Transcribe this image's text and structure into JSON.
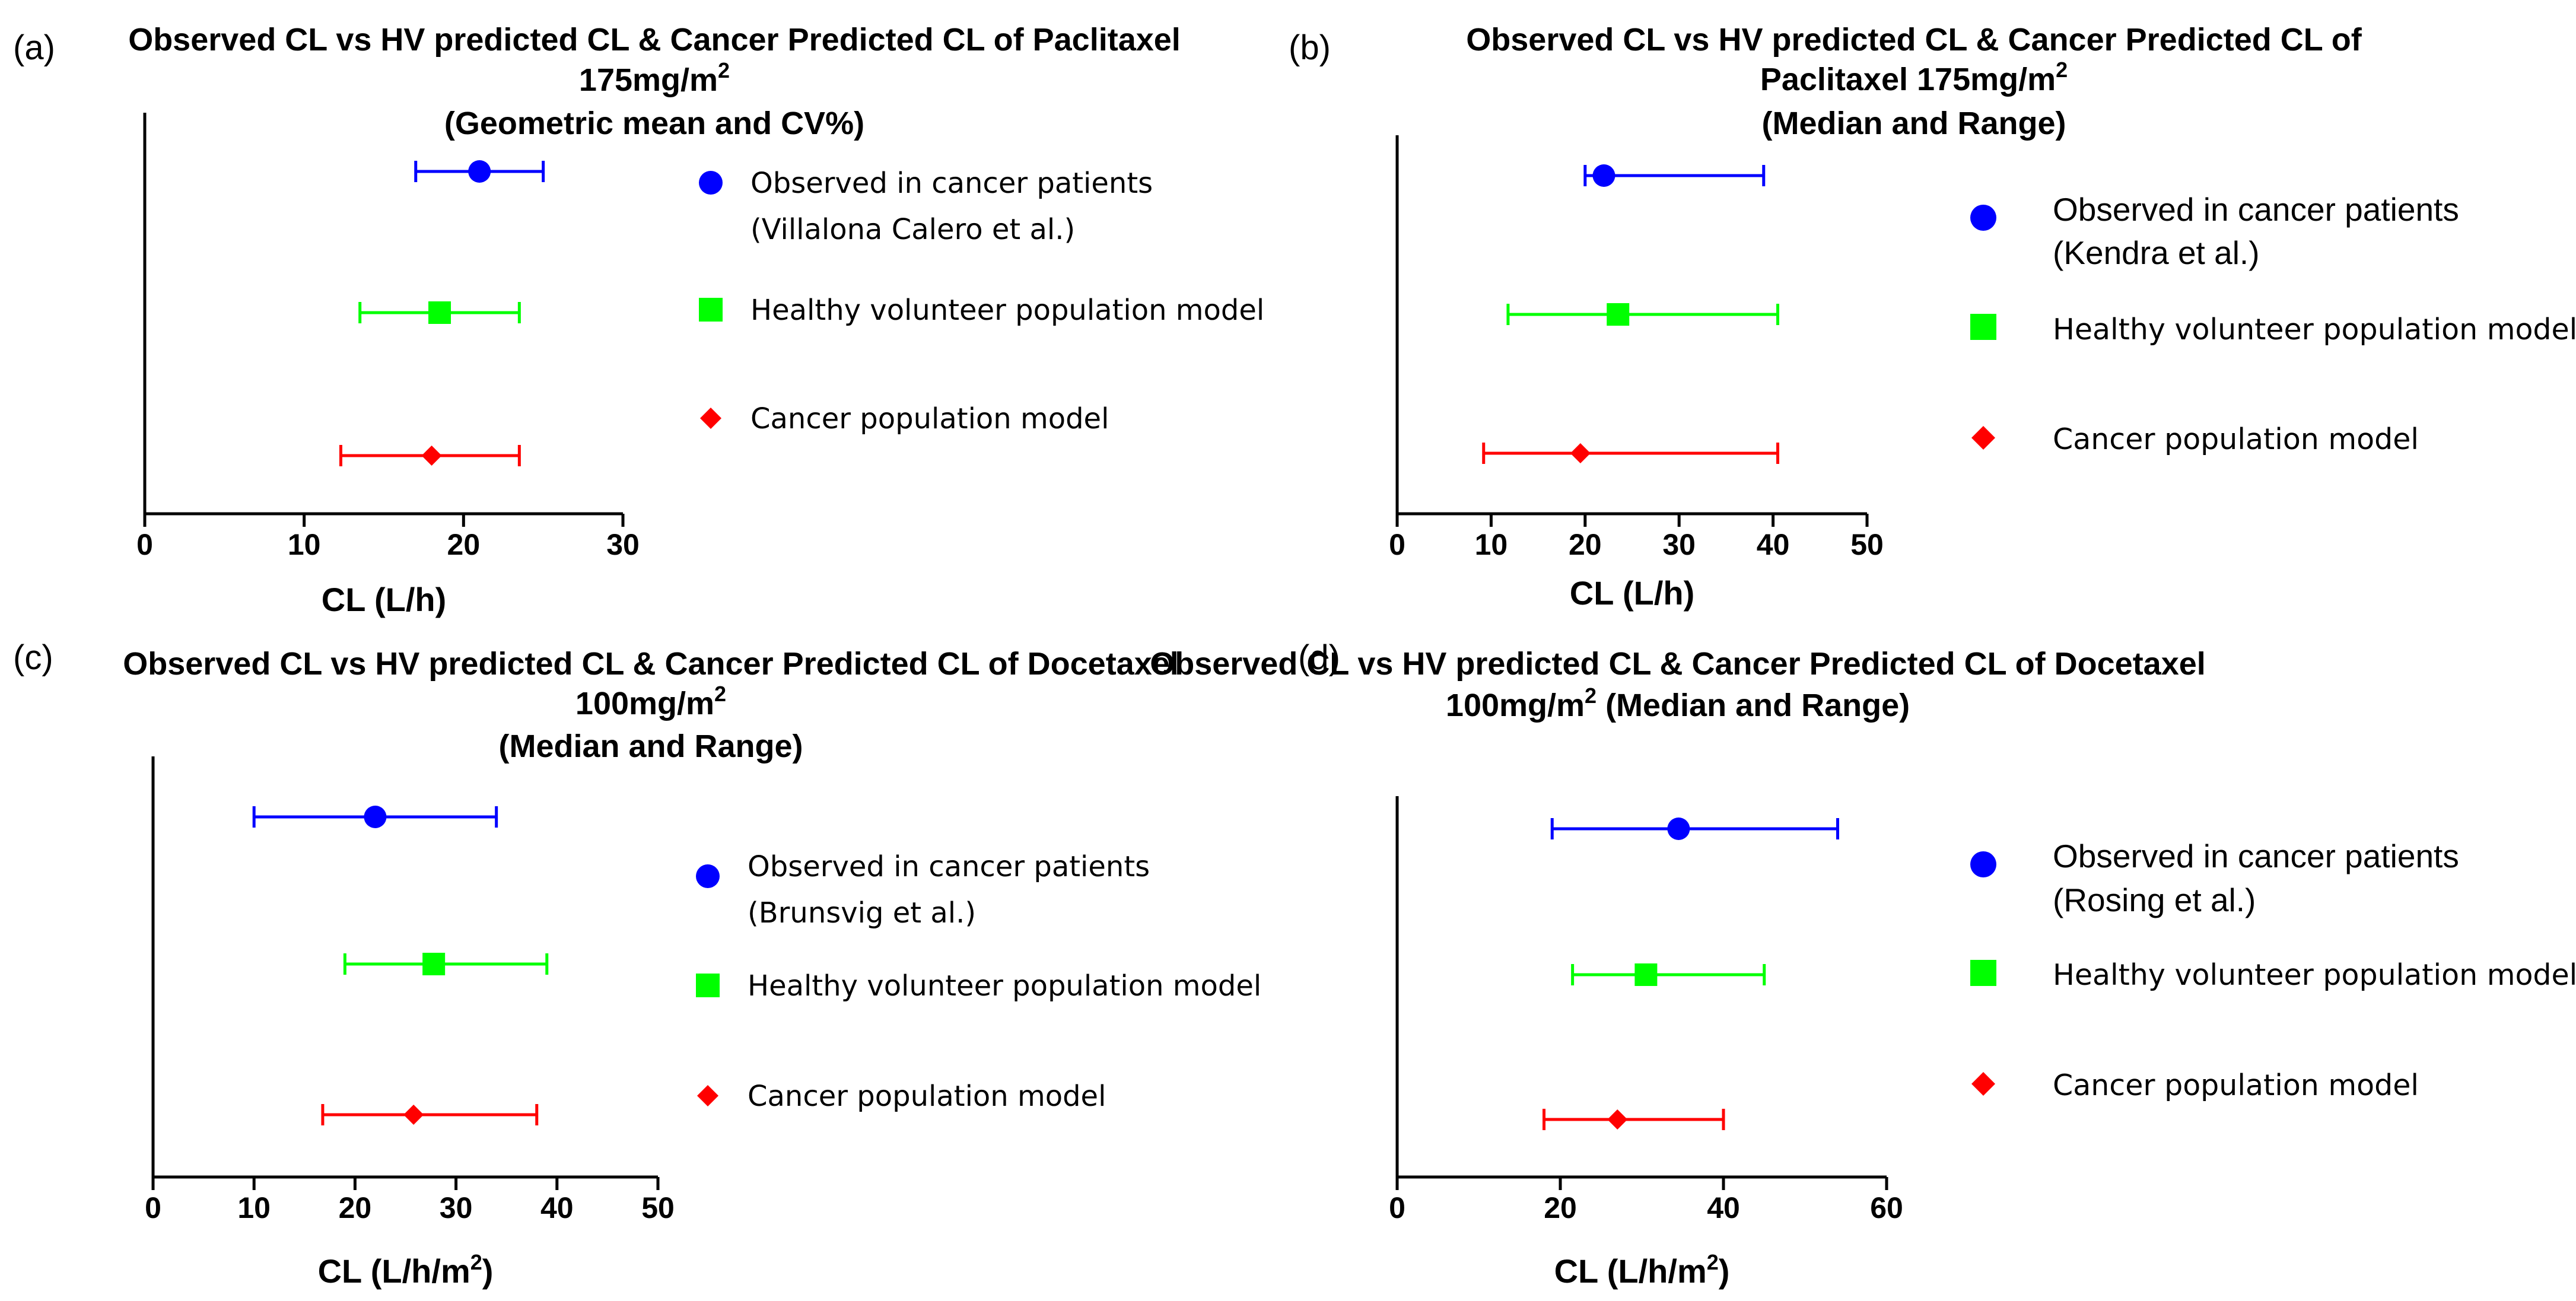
{
  "colors": {
    "observed": "#0000ff",
    "healthy": "#00ff00",
    "cancer": "#ff0000",
    "axis": "#000000"
  },
  "chart_data": [
    {
      "type": "errorbar",
      "panel_label": "(a)",
      "title": [
        "Observed CL vs HV predicted CL & Cancer Predicted CL of Paclitaxel",
        "175mg/m",
        "(Geometric mean and CV%)"
      ],
      "title_sup": "2",
      "xlabel": "CL (L/h)",
      "xlabel_sup": "",
      "xlim": [
        0,
        30
      ],
      "xticks": [
        0,
        10,
        20,
        30
      ],
      "series": [
        {
          "name": "Observed in cancer patients",
          "note": "(Villalona Calero et al.)",
          "marker": "circle",
          "value": 21,
          "low": 17,
          "high": 25
        },
        {
          "name": "Healthy volunteer population model",
          "marker": "square",
          "value": 18.5,
          "low": 13.5,
          "high": 23.5
        },
        {
          "name": "Cancer population model",
          "marker": "diamond",
          "value": 18,
          "low": 12.3,
          "high": 23.5
        }
      ]
    },
    {
      "type": "errorbar",
      "panel_label": "(b)",
      "title": [
        "Observed CL vs HV predicted CL & Cancer Predicted CL of",
        "Paclitaxel 175mg/m",
        "(Median and Range)"
      ],
      "title_sup": "2",
      "xlabel": "CL (L/h)",
      "xlabel_sup": "",
      "xlim": [
        0,
        50
      ],
      "xticks": [
        0,
        10,
        20,
        30,
        40,
        50
      ],
      "series": [
        {
          "name": "Observed in cancer patients",
          "note": "(Kendra et al.)",
          "marker": "circle",
          "value": 22,
          "low": 20,
          "high": 39
        },
        {
          "name": "Healthy volunteer population model",
          "marker": "square",
          "value": 23.5,
          "low": 11.8,
          "high": 40.5
        },
        {
          "name": "Cancer population model",
          "marker": "diamond",
          "value": 19.5,
          "low": 9.2,
          "high": 40.5
        }
      ]
    },
    {
      "type": "errorbar",
      "panel_label": "(c)",
      "title": [
        "Observed CL vs HV predicted CL & Cancer Predicted CL of Docetaxel",
        "100mg/m",
        "(Median and Range)"
      ],
      "title_sup": "2",
      "xlabel": "CL (L/h/m",
      "xlabel_sup": "2",
      "xlabel_end": ")",
      "xlim": [
        0,
        50
      ],
      "xticks": [
        0,
        10,
        20,
        30,
        40,
        50
      ],
      "series": [
        {
          "name": "Observed in cancer patients",
          "note": "(Brunsvig et al.)",
          "marker": "circle",
          "value": 22,
          "low": 10,
          "high": 34
        },
        {
          "name": "Healthy volunteer population model",
          "marker": "square",
          "value": 27.8,
          "low": 19,
          "high": 39
        },
        {
          "name": "Cancer population model",
          "marker": "diamond",
          "value": 25.8,
          "low": 16.8,
          "high": 38
        }
      ]
    },
    {
      "type": "errorbar",
      "panel_label": "(d)",
      "title": [
        "Observed CL vs HV predicted CL & Cancer Predicted CL of Docetaxel",
        "100mg/m",
        " (Median and Range)"
      ],
      "title_sup": "2",
      "xlabel": "CL (L/h/m",
      "xlabel_sup": "2",
      "xlabel_end": ")",
      "xlim": [
        0,
        60
      ],
      "xticks": [
        0,
        20,
        40,
        60
      ],
      "series": [
        {
          "name": "Observed in cancer patients",
          "note": "(Rosing et al.)",
          "marker": "circle",
          "value": 34.5,
          "low": 19,
          "high": 54
        },
        {
          "name": "Healthy volunteer population model",
          "marker": "square",
          "value": 30.5,
          "low": 21.5,
          "high": 45
        },
        {
          "name": "Cancer population model",
          "marker": "diamond",
          "value": 27,
          "low": 18,
          "high": 40
        }
      ]
    }
  ]
}
